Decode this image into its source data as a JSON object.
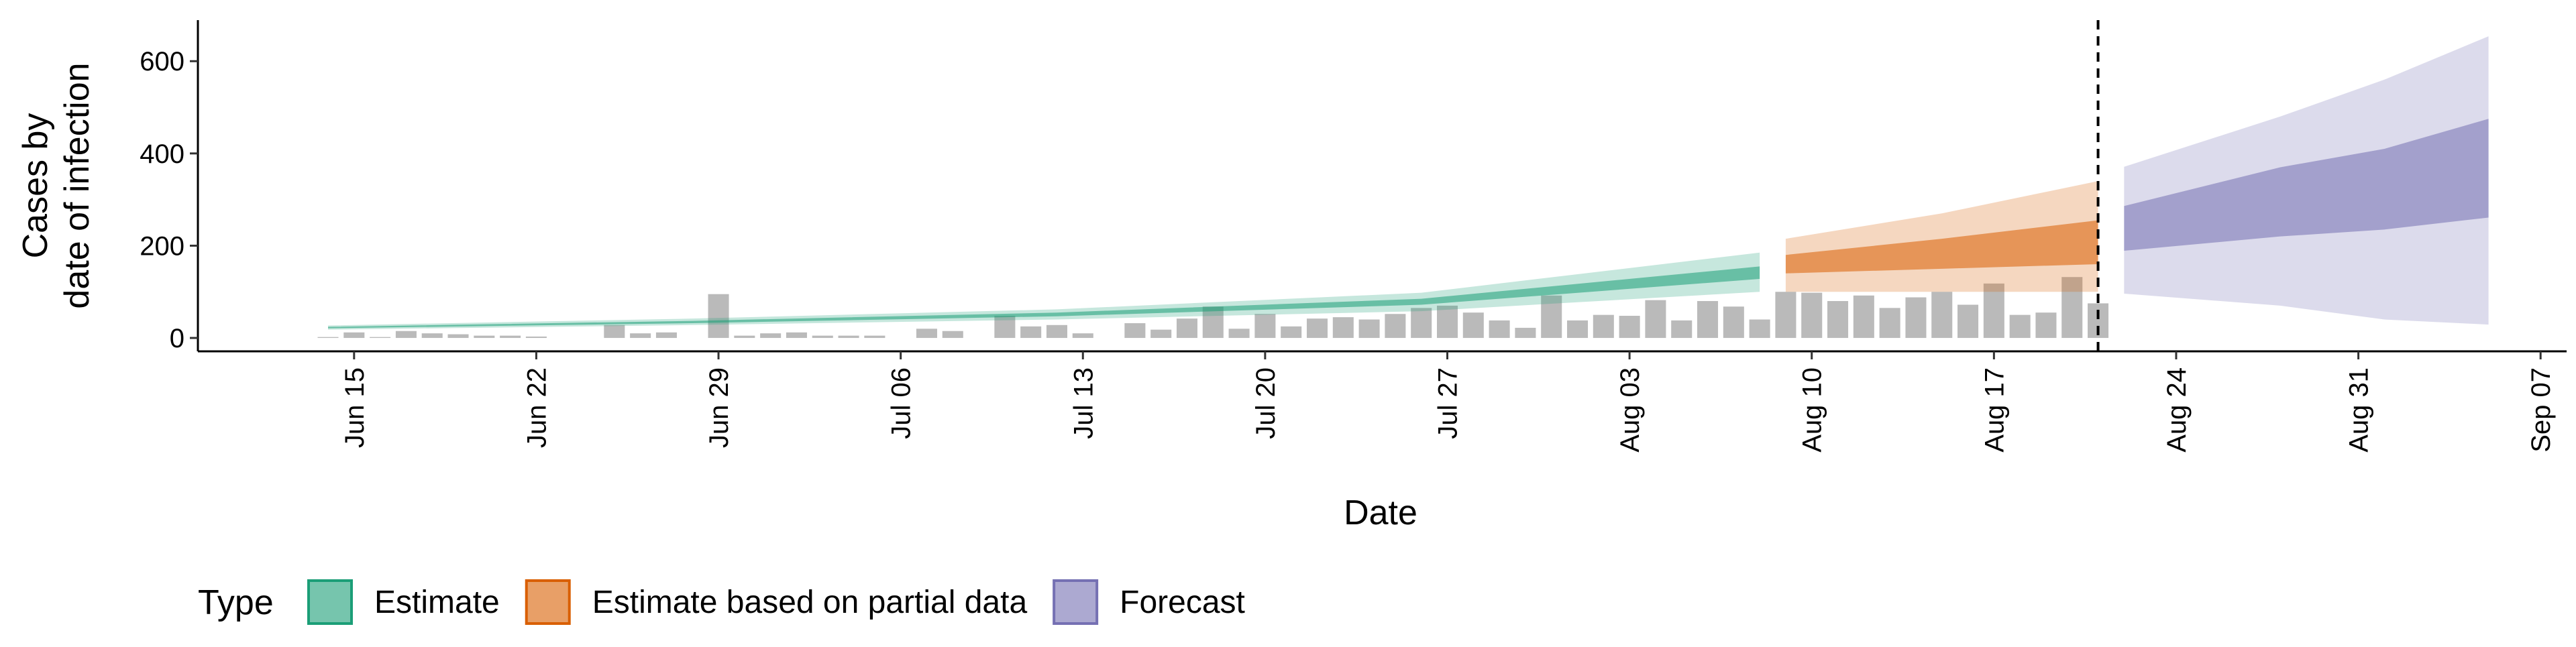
{
  "chart_data": {
    "type": "ribbon",
    "xlabel": "Date",
    "ylabel": [
      "Cases by",
      "date of infection"
    ],
    "xlim": [
      "06-09",
      "09-08"
    ],
    "xticks": [
      {
        "value": "06-15",
        "label": "Jun 15"
      },
      {
        "value": "06-22",
        "label": "Jun 22"
      },
      {
        "value": "06-29",
        "label": "Jun 29"
      },
      {
        "value": "07-06",
        "label": "Jul 06"
      },
      {
        "value": "07-13",
        "label": "Jul 13"
      },
      {
        "value": "07-20",
        "label": "Jul 20"
      },
      {
        "value": "07-27",
        "label": "Jul 27"
      },
      {
        "value": "08-03",
        "label": "Aug 03"
      },
      {
        "value": "08-10",
        "label": "Aug 10"
      },
      {
        "value": "08-17",
        "label": "Aug 17"
      },
      {
        "value": "08-24",
        "label": "Aug 24"
      },
      {
        "value": "08-31",
        "label": "Aug 31"
      },
      {
        "value": "09-07",
        "label": "Sep 07"
      }
    ],
    "ylim": [
      -29,
      689
    ],
    "yticks": [
      0,
      200,
      400,
      600
    ],
    "vline": "08-21",
    "legend_title": "Type",
    "bars": {
      "color": "#bababa",
      "x": [
        "06-14",
        "06-15",
        "06-16",
        "06-17",
        "06-18",
        "06-19",
        "06-20",
        "06-21",
        "06-22",
        "06-23",
        "06-24",
        "06-25",
        "06-26",
        "06-27",
        "06-28",
        "06-29",
        "06-30",
        "07-01",
        "07-02",
        "07-03",
        "07-04",
        "07-05",
        "07-06",
        "07-07",
        "07-08",
        "07-09",
        "07-10",
        "07-11",
        "07-12",
        "07-13",
        "07-14",
        "07-15",
        "07-16",
        "07-17",
        "07-18",
        "07-19",
        "07-20",
        "07-21",
        "07-22",
        "07-23",
        "07-24",
        "07-25",
        "07-26",
        "07-27",
        "07-28",
        "07-29",
        "07-30",
        "07-31",
        "08-01",
        "08-02",
        "08-03",
        "08-04",
        "08-05",
        "08-06",
        "08-07",
        "08-08",
        "08-09",
        "08-10",
        "08-11",
        "08-12",
        "08-13",
        "08-14",
        "08-15",
        "08-16",
        "08-17",
        "08-18",
        "08-19",
        "08-20",
        "08-21"
      ],
      "values": [
        2,
        12,
        2,
        15,
        10,
        8,
        5,
        5,
        3,
        0,
        0,
        28,
        10,
        12,
        0,
        95,
        5,
        10,
        12,
        5,
        5,
        5,
        0,
        20,
        15,
        0,
        48,
        25,
        28,
        10,
        0,
        32,
        18,
        42,
        68,
        20,
        52,
        25,
        42,
        45,
        40,
        52,
        65,
        70,
        55,
        38,
        22,
        92,
        38,
        50,
        48,
        82,
        38,
        80,
        68,
        40,
        100,
        98,
        80,
        92,
        65,
        88,
        100,
        72,
        118,
        50,
        55,
        132,
        75
      ]
    },
    "ribbons": [
      {
        "name": "Estimate",
        "color": "#1b9e77",
        "x": [
          "06-14",
          "06-28",
          "07-12",
          "07-26",
          "08-08"
        ],
        "lower_90": [
          18,
          28,
          40,
          58,
          100
        ],
        "lower_50": [
          21,
          32,
          47,
          72,
          128
        ],
        "upper_50": [
          24,
          37,
          55,
          85,
          155
        ],
        "upper_90": [
          27,
          42,
          62,
          98,
          185
        ]
      },
      {
        "name": "Estimate based on partial data",
        "color": "#d95f02",
        "x": [
          "08-09",
          "08-15",
          "08-21"
        ],
        "lower_90": [
          100,
          100,
          100
        ],
        "lower_50": [
          140,
          150,
          160
        ],
        "upper_50": [
          180,
          215,
          255
        ],
        "upper_90": [
          215,
          270,
          340
        ]
      },
      {
        "name": "Forecast",
        "color": "#7570b3",
        "x": [
          "08-22",
          "08-28",
          "09-01",
          "09-05"
        ],
        "lower_90": [
          96,
          70,
          40,
          29
        ],
        "lower_50": [
          189,
          220,
          235,
          261
        ],
        "upper_50": [
          286,
          370,
          410,
          475
        ],
        "upper_90": [
          371,
          480,
          560,
          654
        ]
      }
    ]
  }
}
